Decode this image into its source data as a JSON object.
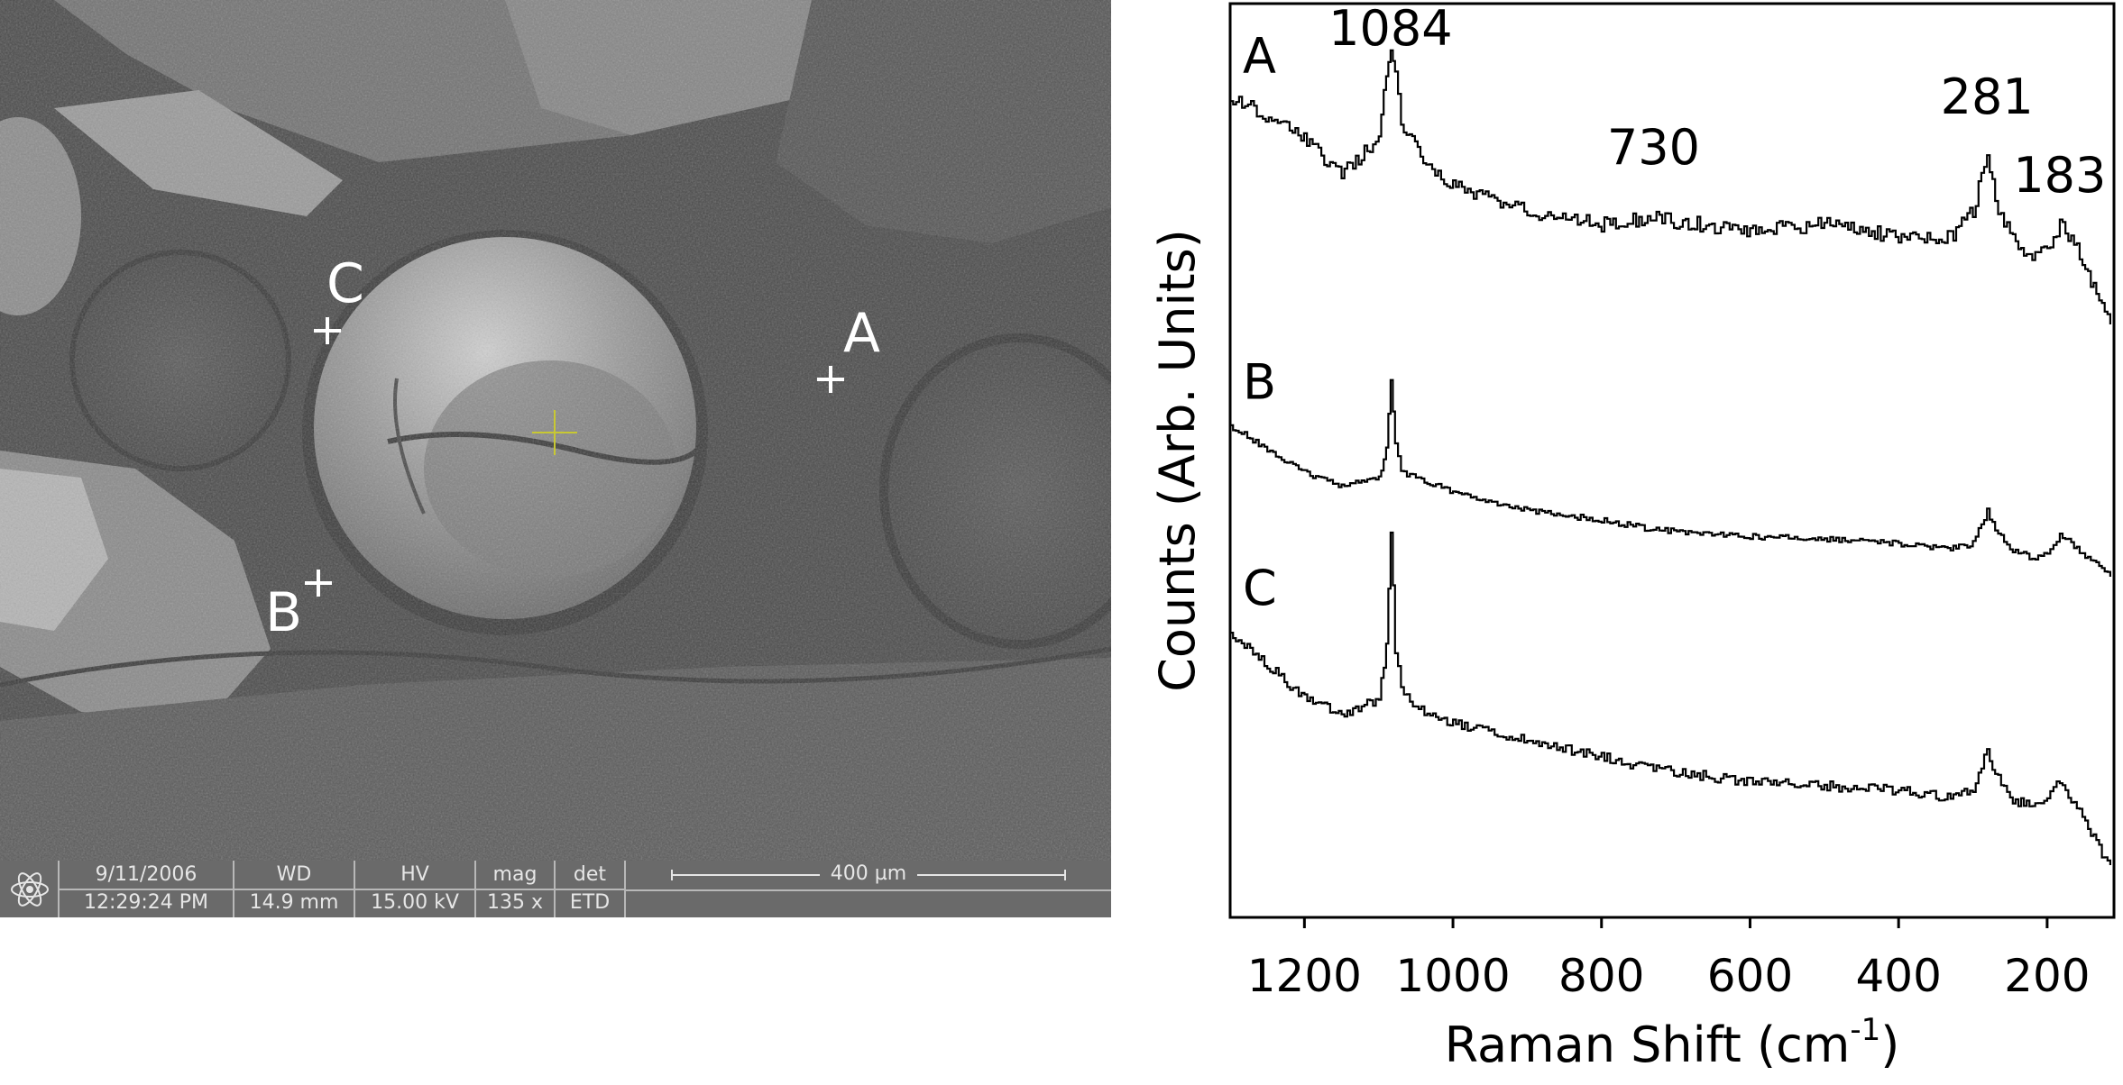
{
  "sem": {
    "points": [
      {
        "label": "A"
      },
      {
        "label": "B"
      },
      {
        "label": "C"
      }
    ],
    "info_bar": {
      "date": "9/11/2006",
      "time": "12:29:24 PM",
      "wd_label": "WD",
      "wd_value": "14.9 mm",
      "hv_label": "HV",
      "hv_value": "15.00 kV",
      "mag_label": "mag",
      "mag_value": "135 x",
      "det_label": "det",
      "det_value": "ETD",
      "scale_label": "400 µm"
    }
  },
  "chart_data": {
    "type": "line",
    "xlabel": "Raman Shift (cm",
    "xlabel_sup": "-1",
    "xlabel_end": ")",
    "ylabel": "Counts (Arb. Units)",
    "xlim": [
      1300,
      110
    ],
    "x_reversed": true,
    "x_ticks": [
      1200,
      1000,
      800,
      600,
      400,
      200
    ],
    "y_ticks": [],
    "grid": false,
    "annotations": [
      "1084",
      "730",
      "281",
      "183"
    ],
    "series": [
      {
        "name": "A",
        "points": [
          [
            1300,
            0.96
          ],
          [
            1220,
            0.94
          ],
          [
            1150,
            0.9
          ],
          [
            1100,
            0.93
          ],
          [
            1090,
            0.98
          ],
          [
            1084,
            1.0
          ],
          [
            1078,
            0.98
          ],
          [
            1070,
            0.94
          ],
          [
            1040,
            0.91
          ],
          [
            1000,
            0.89
          ],
          [
            900,
            0.87
          ],
          [
            800,
            0.86
          ],
          [
            730,
            0.865
          ],
          [
            600,
            0.855
          ],
          [
            500,
            0.86
          ],
          [
            400,
            0.85
          ],
          [
            330,
            0.85
          ],
          [
            300,
            0.87
          ],
          [
            281,
            0.92
          ],
          [
            270,
            0.88
          ],
          [
            250,
            0.85
          ],
          [
            220,
            0.83
          ],
          [
            200,
            0.84
          ],
          [
            183,
            0.86
          ],
          [
            160,
            0.84
          ],
          [
            130,
            0.8
          ],
          [
            115,
            0.78
          ]
        ]
      },
      {
        "name": "B",
        "points": [
          [
            1300,
            0.9
          ],
          [
            1250,
            0.85
          ],
          [
            1200,
            0.8
          ],
          [
            1150,
            0.77
          ],
          [
            1100,
            0.79
          ],
          [
            1090,
            0.85
          ],
          [
            1084,
            1.0
          ],
          [
            1078,
            0.86
          ],
          [
            1070,
            0.8
          ],
          [
            1050,
            0.79
          ],
          [
            1000,
            0.76
          ],
          [
            900,
            0.72
          ],
          [
            800,
            0.7
          ],
          [
            730,
            0.68
          ],
          [
            600,
            0.665
          ],
          [
            500,
            0.66
          ],
          [
            400,
            0.65
          ],
          [
            330,
            0.64
          ],
          [
            300,
            0.65
          ],
          [
            281,
            0.72
          ],
          [
            270,
            0.68
          ],
          [
            250,
            0.64
          ],
          [
            220,
            0.62
          ],
          [
            200,
            0.63
          ],
          [
            183,
            0.67
          ],
          [
            160,
            0.64
          ],
          [
            130,
            0.6
          ],
          [
            115,
            0.58
          ]
        ]
      },
      {
        "name": "C",
        "points": [
          [
            1300,
            0.88
          ],
          [
            1250,
            0.84
          ],
          [
            1200,
            0.8
          ],
          [
            1150,
            0.78
          ],
          [
            1100,
            0.8
          ],
          [
            1090,
            0.86
          ],
          [
            1084,
            1.0
          ],
          [
            1078,
            0.86
          ],
          [
            1070,
            0.81
          ],
          [
            1050,
            0.79
          ],
          [
            1000,
            0.77
          ],
          [
            900,
            0.75
          ],
          [
            800,
            0.73
          ],
          [
            730,
            0.715
          ],
          [
            600,
            0.7
          ],
          [
            500,
            0.695
          ],
          [
            400,
            0.69
          ],
          [
            330,
            0.68
          ],
          [
            300,
            0.69
          ],
          [
            281,
            0.74
          ],
          [
            270,
            0.71
          ],
          [
            250,
            0.68
          ],
          [
            220,
            0.67
          ],
          [
            200,
            0.68
          ],
          [
            183,
            0.7
          ],
          [
            160,
            0.67
          ],
          [
            130,
            0.62
          ],
          [
            115,
            0.6
          ]
        ]
      }
    ]
  }
}
